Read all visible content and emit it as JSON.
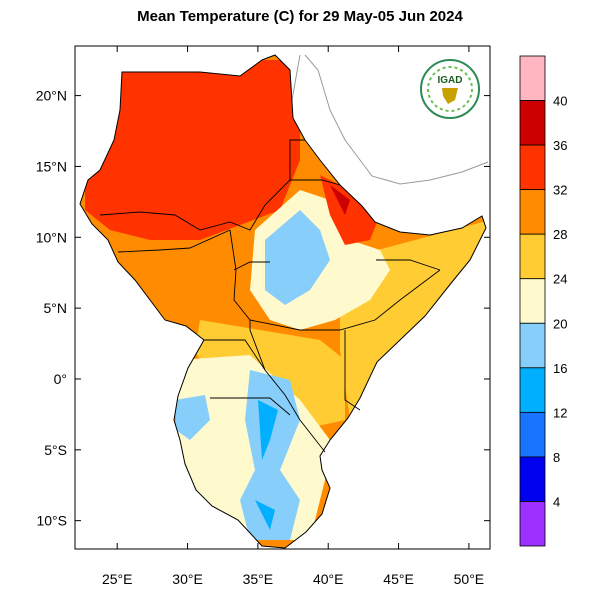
{
  "title": "Mean Temperature (C) for 29 May-05 Jun 2024",
  "logo_text": "IGAD",
  "map": {
    "lon_ticks": [
      "25°E",
      "30°E",
      "35°E",
      "40°E",
      "45°E",
      "50°E"
    ],
    "lat_ticks": [
      "20°N",
      "15°N",
      "10°N",
      "5°N",
      "0°",
      "5°S",
      "10°S"
    ]
  },
  "colorbar": {
    "labels": [
      "4",
      "8",
      "12",
      "16",
      "20",
      "24",
      "28",
      "32",
      "36",
      "40"
    ],
    "colors": [
      "#9b30ff",
      "#0000ee",
      "#1874ff",
      "#00b0ff",
      "#87cefa",
      "#fffacd",
      "#ffcc33",
      "#ff8c00",
      "#ff3300",
      "#cc0000",
      "#ffb6c1"
    ]
  },
  "chart_data": {
    "type": "heatmap",
    "title": "Mean Temperature (C) for 29 May-05 Jun 2024",
    "xlabel": "",
    "ylabel": "",
    "xlim": [
      22,
      51.5
    ],
    "ylim": [
      -12,
      23.5
    ],
    "x_ticks": [
      25,
      30,
      35,
      40,
      45,
      50
    ],
    "y_ticks": [
      20,
      15,
      10,
      5,
      0,
      -5,
      -10
    ],
    "color_levels": [
      4,
      8,
      12,
      16,
      20,
      24,
      28,
      32,
      36,
      40
    ],
    "legend": "right"
  }
}
